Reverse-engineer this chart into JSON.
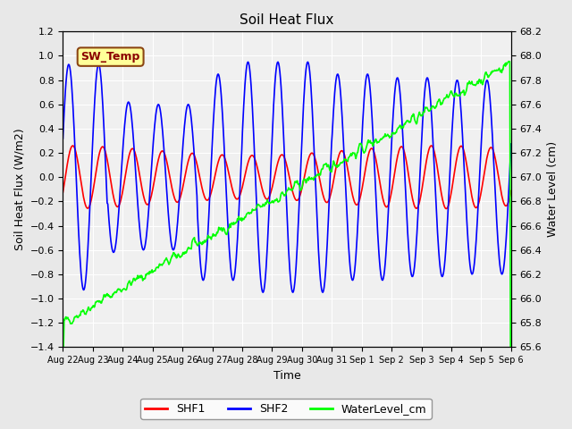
{
  "title": "Soil Heat Flux",
  "ylabel_left": "Soil Heat Flux (W/m2)",
  "ylabel_right": "Water Level (cm)",
  "xlabel": "Time",
  "ylim_left": [
    -1.4,
    1.2
  ],
  "ylim_right": [
    65.6,
    68.2
  ],
  "bg_color": "#e8e8e8",
  "plot_bg_color": "#f0f0f0",
  "xtick_labels": [
    "Aug 22",
    "Aug 23",
    "Aug 24",
    "Aug 25",
    "Aug 26",
    "Aug 27",
    "Aug 28",
    "Aug 29",
    "Aug 30",
    "Aug 31",
    "Sep 1",
    "Sep 2",
    "Sep 3",
    "Sep 4",
    "Sep 5",
    "Sep 6"
  ],
  "shf1_color": "red",
  "shf2_color": "blue",
  "water_color": "lime",
  "annotation_text": "SW_Temp",
  "annotation_color": "#8B0000",
  "annotation_bg": "#FFFF99",
  "annotation_border": "#8B4513"
}
